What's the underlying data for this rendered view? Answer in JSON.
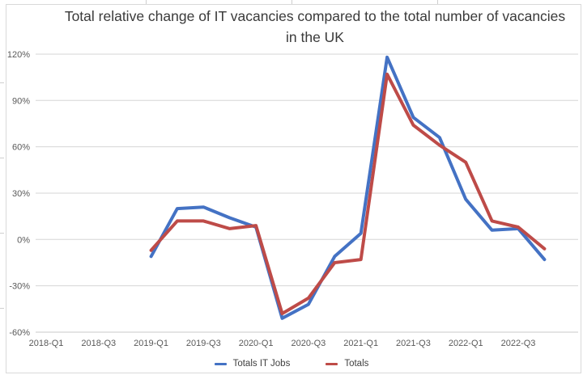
{
  "chart_data": {
    "type": "line",
    "title": "Total relative change of IT vacancies compared to the total number of vacancies in the UK",
    "x_categories_full": [
      "2018-Q1",
      "2018-Q2",
      "2018-Q3",
      "2018-Q4",
      "2019-Q1",
      "2019-Q2",
      "2019-Q3",
      "2019-Q4",
      "2020-Q1",
      "2020-Q2",
      "2020-Q3",
      "2020-Q4",
      "2021-Q1",
      "2021-Q2",
      "2021-Q3",
      "2021-Q4",
      "2022-Q1",
      "2022-Q2",
      "2022-Q3",
      "2022-Q4"
    ],
    "x_tick_labels": [
      "2018-Q1",
      "2018-Q3",
      "2019-Q1",
      "2019-Q3",
      "2020-Q1",
      "2020-Q3",
      "2021-Q1",
      "2021-Q3",
      "2022-Q1",
      "2022-Q3"
    ],
    "y_tick_labels": [
      "120%",
      "90%",
      "60%",
      "30%",
      "0%",
      "-30%",
      "-60%"
    ],
    "ylim": [
      -60,
      120
    ],
    "y_step": 30,
    "grid": true,
    "legend_position": "bottom",
    "data_categories": [
      "2019-Q1",
      "2019-Q2",
      "2019-Q3",
      "2019-Q4",
      "2020-Q1",
      "2020-Q2",
      "2020-Q3",
      "2020-Q4",
      "2021-Q1",
      "2021-Q2",
      "2021-Q3",
      "2021-Q4",
      "2022-Q1",
      "2022-Q2",
      "2022-Q3",
      "2022-Q4"
    ],
    "series": [
      {
        "name": "Totals IT Jobs",
        "color": "#4472C4",
        "start_index": 4,
        "values": [
          -11,
          20,
          21,
          14,
          8,
          -51,
          -42,
          -11,
          4,
          118,
          79,
          66,
          26,
          6,
          7,
          -13
        ]
      },
      {
        "name": "Totals",
        "color": "#BE4B48",
        "start_index": 4,
        "values": [
          -7,
          12,
          12,
          7,
          9,
          -48,
          -38,
          -15,
          -13,
          107,
          74,
          61,
          50,
          12,
          8,
          -6
        ]
      }
    ],
    "axis_label_color": "#595959",
    "gridline_color": "#d6d6d6"
  }
}
